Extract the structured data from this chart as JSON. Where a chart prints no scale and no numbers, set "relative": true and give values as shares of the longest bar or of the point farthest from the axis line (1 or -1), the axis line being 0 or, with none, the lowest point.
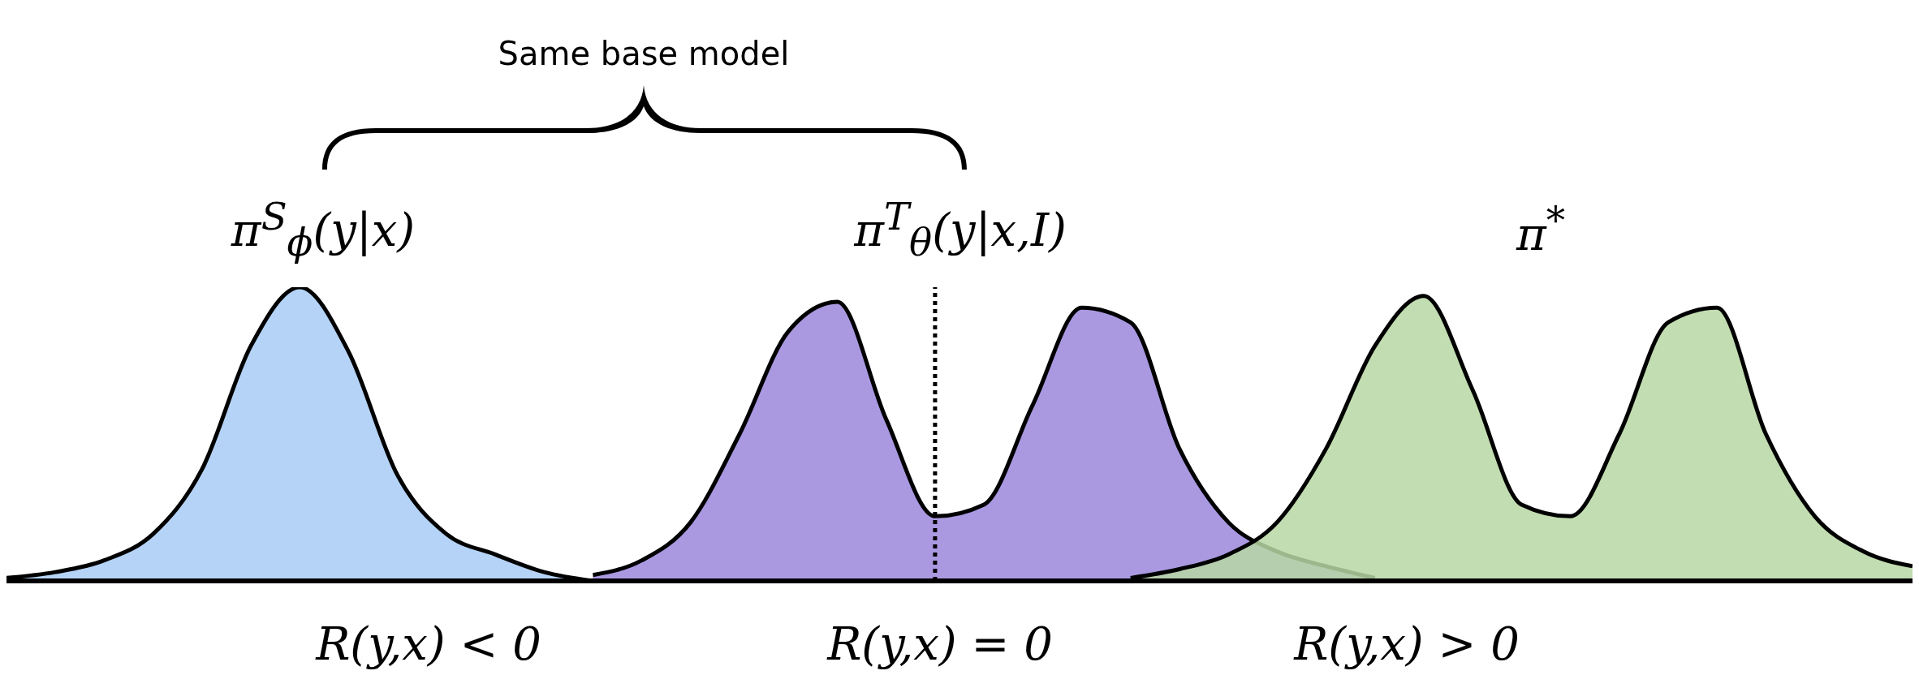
{
  "chart_data": {
    "type": "area",
    "relative": true,
    "marker": "none",
    "line_style": "solid",
    "categories": [
      null,
      null,
      null,
      null,
      null,
      null,
      null,
      null,
      null,
      null,
      null,
      null,
      null,
      null,
      null,
      null,
      null,
      null,
      null,
      null,
      null,
      null,
      null,
      null,
      null,
      null,
      null,
      null,
      null,
      null,
      null,
      null,
      null,
      null,
      null,
      null,
      null,
      null,
      null,
      null
    ],
    "series": [
      {
        "color": "#a8cbf5",
        "values": [
          0.01,
          0.03,
          0.07,
          0.16,
          0.38,
          0.8,
          1.0,
          0.78,
          0.36,
          0.16,
          0.09,
          0.03,
          0,
          null,
          null,
          null,
          null,
          null,
          null,
          null,
          null,
          null,
          null,
          null,
          null,
          null,
          null,
          null,
          null,
          null,
          null,
          null,
          null,
          null,
          null,
          null,
          null,
          null,
          null,
          null
        ]
      },
      {
        "color": "#9b87dc",
        "values": [
          null,
          null,
          null,
          null,
          null,
          null,
          null,
          null,
          null,
          null,
          null,
          null,
          0.02,
          0.07,
          0.2,
          0.5,
          0.85,
          0.95,
          0.55,
          0.22,
          0.26,
          0.6,
          0.93,
          0.88,
          0.45,
          0.2,
          0.1,
          0.05,
          0.01,
          null,
          null,
          null,
          null,
          null,
          null,
          null,
          null,
          null,
          null,
          null
        ]
      },
      {
        "color": "#b7d7a3",
        "values": [
          null,
          null,
          null,
          null,
          null,
          null,
          null,
          null,
          null,
          null,
          null,
          null,
          null,
          null,
          null,
          null,
          null,
          null,
          null,
          null,
          null,
          null,
          null,
          0.01,
          0.04,
          0.09,
          0.2,
          0.45,
          0.8,
          0.97,
          0.65,
          0.26,
          0.22,
          0.5,
          0.88,
          0.93,
          0.5,
          0.22,
          0.1,
          0.05
        ]
      }
    ],
    "annotations": [
      "Same base model",
      "π$^{S}$$_{ϕ}$(y|x)",
      "π$^{T}$$_{θ}$(y|x,I)",
      "π$^{*}$",
      "R(y,x) < 0",
      "R(y,x) = 0",
      "R(y,x) > 0"
    ]
  }
}
